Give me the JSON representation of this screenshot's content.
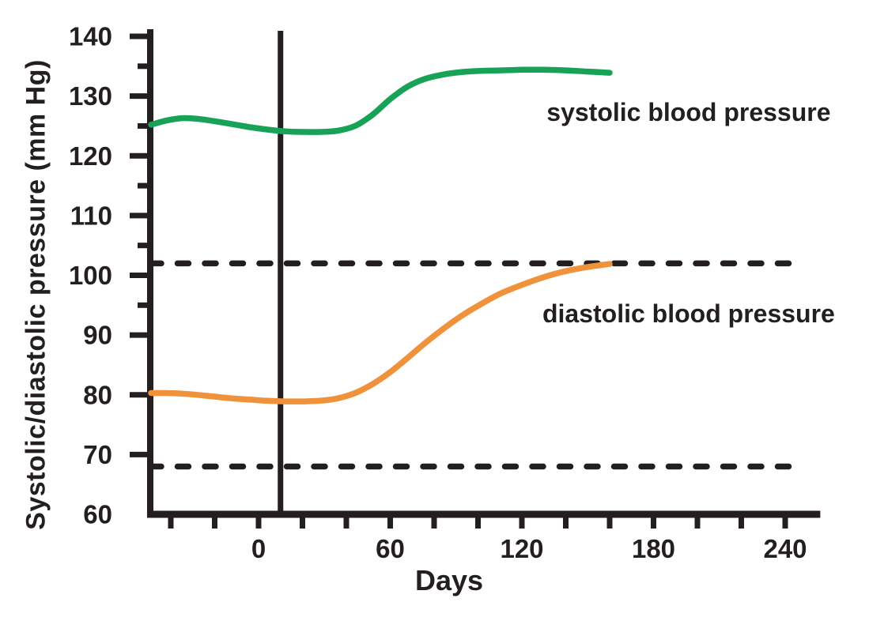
{
  "figure": {
    "background": "#ffffff",
    "ink_color": "#231f20"
  },
  "chart_data": {
    "type": "line",
    "title": "",
    "xlabel": "Days",
    "ylabel": "Systolic/diastolic pressure (mm Hg)",
    "xlim": [
      -50,
      256
    ],
    "ylim": [
      60,
      140
    ],
    "grid": false,
    "legend_position": "inline-annotations",
    "x_ticks_labeled": [
      0,
      60,
      120,
      180,
      240
    ],
    "x_tick_minor_step": 20,
    "y_ticks_labeled": [
      60,
      70,
      80,
      90,
      100,
      110,
      120,
      130,
      140
    ],
    "y_ticks_minor": [
      95,
      105,
      115,
      125,
      135
    ],
    "axis_color": "#231f20",
    "event_line": {
      "x": 10,
      "color": "#231f20",
      "style": "solid"
    },
    "reference_lines": [
      {
        "name": "upper-dashed-reference",
        "y": 102,
        "style": "dashed",
        "color": "#231f20"
      },
      {
        "name": "lower-dashed-reference",
        "y": 68,
        "style": "dashed",
        "color": "#231f20"
      }
    ],
    "series": [
      {
        "name": "systolic blood pressure",
        "color": "#17a258",
        "points": [
          [
            -49,
            125.2
          ],
          [
            -42,
            125.9
          ],
          [
            -35,
            126.3
          ],
          [
            -28,
            126.2
          ],
          [
            -20,
            125.8
          ],
          [
            -12,
            125.3
          ],
          [
            -4,
            124.8
          ],
          [
            4,
            124.4
          ],
          [
            12,
            124.1
          ],
          [
            20,
            124.0
          ],
          [
            28,
            124.0
          ],
          [
            36,
            124.2
          ],
          [
            44,
            125.0
          ],
          [
            52,
            126.9
          ],
          [
            60,
            129.5
          ],
          [
            68,
            131.6
          ],
          [
            76,
            132.9
          ],
          [
            84,
            133.6
          ],
          [
            92,
            134.0
          ],
          [
            100,
            134.2
          ],
          [
            110,
            134.3
          ],
          [
            120,
            134.4
          ],
          [
            130,
            134.4
          ],
          [
            140,
            134.3
          ],
          [
            150,
            134.1
          ],
          [
            160,
            133.9
          ]
        ]
      },
      {
        "name": "diastolic blood pressure",
        "color": "#f0913c",
        "points": [
          [
            -49,
            80.3
          ],
          [
            -42,
            80.3
          ],
          [
            -35,
            80.2
          ],
          [
            -28,
            80.0
          ],
          [
            -20,
            79.7
          ],
          [
            -12,
            79.4
          ],
          [
            -4,
            79.2
          ],
          [
            4,
            79.0
          ],
          [
            12,
            78.9
          ],
          [
            20,
            78.9
          ],
          [
            28,
            79.0
          ],
          [
            36,
            79.4
          ],
          [
            44,
            80.3
          ],
          [
            52,
            81.8
          ],
          [
            60,
            83.8
          ],
          [
            68,
            86.2
          ],
          [
            76,
            88.7
          ],
          [
            84,
            91.0
          ],
          [
            92,
            93.1
          ],
          [
            100,
            94.9
          ],
          [
            110,
            96.9
          ],
          [
            120,
            98.4
          ],
          [
            130,
            99.7
          ],
          [
            140,
            100.7
          ],
          [
            150,
            101.4
          ],
          [
            160,
            101.9
          ]
        ]
      }
    ],
    "annotations": [
      {
        "text": "systolic blood pressure",
        "x": 196,
        "y": 127.3
      },
      {
        "text": "diastolic blood pressure",
        "x": 196,
        "y": 93.6
      }
    ]
  }
}
